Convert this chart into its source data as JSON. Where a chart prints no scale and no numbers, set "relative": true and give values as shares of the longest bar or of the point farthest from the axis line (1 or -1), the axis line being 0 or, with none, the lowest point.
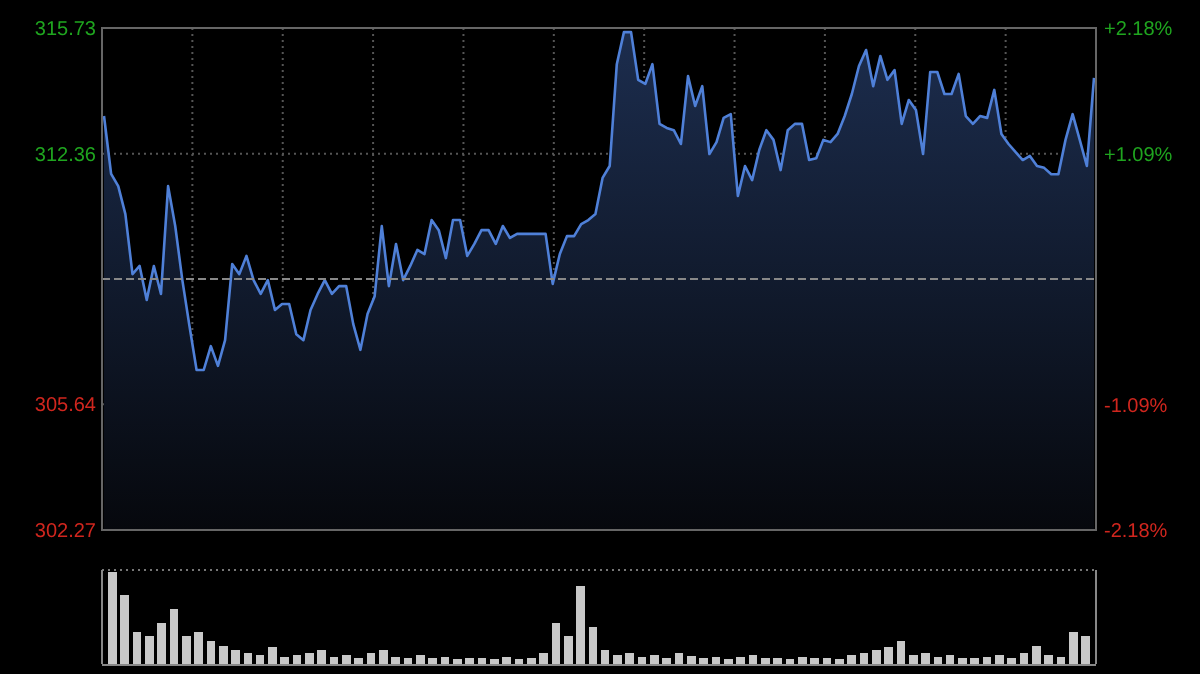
{
  "chart_data": [
    {
      "type": "area",
      "categories": [
        null,
        null,
        null,
        null,
        null,
        null,
        null,
        null,
        null,
        null,
        null,
        null,
        null,
        null,
        null,
        null,
        null,
        null,
        null,
        null,
        null,
        null,
        null,
        null,
        null,
        null,
        null,
        null,
        null,
        null,
        null,
        null,
        null,
        null,
        null,
        null,
        null,
        null,
        null,
        null,
        null,
        null,
        null,
        null,
        null,
        null,
        null,
        null,
        null,
        null,
        null,
        null,
        null,
        null,
        null,
        null,
        null,
        null,
        null,
        null,
        null,
        null,
        null,
        null,
        null,
        null,
        null,
        null,
        null,
        null,
        null,
        null,
        null,
        null,
        null,
        null,
        null,
        null,
        null,
        null,
        null,
        null,
        null,
        null,
        null,
        null,
        null,
        null,
        null,
        null,
        null,
        null,
        null,
        null,
        null,
        null,
        null,
        null,
        null,
        null,
        null,
        null,
        null,
        null,
        null,
        null,
        null,
        null,
        null,
        null,
        null,
        null,
        null,
        null,
        null,
        null,
        null,
        null,
        null,
        null,
        null,
        null,
        null,
        null,
        null,
        null,
        null,
        null,
        null,
        null,
        null,
        null,
        null,
        null,
        null,
        null,
        null,
        null,
        null,
        null
      ],
      "series": [
        {
          "color": "#4f80d8",
          "values": [
            313.37,
            311.82,
            311.49,
            310.74,
            309.13,
            309.35,
            308.44,
            309.35,
            308.6,
            311.49,
            310.42,
            308.97,
            307.74,
            306.56,
            306.56,
            307.2,
            306.67,
            307.36,
            309.4,
            309.13,
            309.62,
            308.97,
            308.6,
            308.97,
            308.17,
            308.33,
            308.33,
            307.52,
            307.36,
            308.17,
            308.6,
            308.97,
            308.6,
            308.81,
            308.81,
            307.79,
            307.1,
            308.06,
            308.54,
            310.42,
            308.81,
            309.94,
            308.97,
            309.35,
            309.78,
            309.67,
            310.58,
            310.31,
            309.56,
            310.58,
            310.58,
            309.62,
            309.94,
            310.31,
            310.31,
            309.94,
            310.42,
            310.1,
            310.21,
            310.21,
            310.21,
            310.21,
            310.21,
            308.87,
            309.67,
            310.15,
            310.15,
            310.47,
            310.58,
            310.74,
            311.71,
            312.03,
            314.76,
            315.62,
            315.62,
            314.34,
            314.23,
            314.76,
            313.16,
            313.05,
            312.99,
            312.62,
            314.44,
            313.64,
            314.17,
            312.35,
            312.67,
            313.32,
            313.42,
            311.23,
            312.03,
            311.65,
            312.46,
            312.99,
            312.73,
            311.92,
            312.99,
            313.16,
            313.16,
            312.19,
            312.24,
            312.73,
            312.67,
            312.89,
            313.37,
            313.96,
            314.71,
            315.14,
            314.17,
            314.98,
            314.34,
            314.6,
            313.16,
            313.8,
            313.53,
            312.35,
            314.55,
            314.55,
            313.96,
            313.96,
            314.5,
            313.37,
            313.16,
            313.37,
            313.32,
            314.07,
            312.89,
            312.62,
            312.4,
            312.19,
            312.3,
            312.03,
            311.98,
            311.81,
            311.81,
            312.73,
            313.42,
            312.73,
            312.03,
            314.39
          ]
        }
      ],
      "ylim": [
        302.27,
        315.73
      ],
      "yticks": [
        302.27,
        305.64,
        312.36,
        315.73
      ],
      "y2lim": [
        -2.18,
        2.18
      ],
      "y2ticks": [
        {
          "value": -2.18,
          "label": "-2.18%"
        },
        {
          "value": -1.09,
          "label": "-1.09%"
        },
        {
          "value": 1.09,
          "label": "+1.09%"
        },
        {
          "value": 2.18,
          "label": "+2.18%"
        }
      ],
      "ref_lines": [
        {
          "axis": "y",
          "value": 309.0,
          "line_style": "dashed"
        }
      ],
      "grid": true
    },
    {
      "type": "bar",
      "relative": true,
      "grid": true,
      "color": "#c8c8c8",
      "categories": [
        null,
        null,
        null,
        null,
        null,
        null,
        null,
        null,
        null,
        null,
        null,
        null,
        null,
        null,
        null,
        null,
        null,
        null,
        null,
        null,
        null,
        null,
        null,
        null,
        null,
        null,
        null,
        null,
        null,
        null,
        null,
        null,
        null,
        null,
        null,
        null,
        null,
        null,
        null,
        null,
        null,
        null,
        null,
        null,
        null,
        null,
        null,
        null,
        null,
        null,
        null,
        null,
        null,
        null,
        null,
        null,
        null,
        null,
        null,
        null,
        null,
        null,
        null,
        null,
        null,
        null,
        null,
        null,
        null,
        null,
        null,
        null,
        null,
        null,
        null,
        null,
        null,
        null,
        null,
        null
      ],
      "values": [
        1,
        0.75,
        0.35,
        0.3,
        0.45,
        0.6,
        0.3,
        0.35,
        0.25,
        0.2,
        0.15,
        0.12,
        0.1,
        0.18,
        0.08,
        0.1,
        0.12,
        0.15,
        0.08,
        0.1,
        0.06,
        0.12,
        0.15,
        0.08,
        0.07,
        0.1,
        0.06,
        0.08,
        0.05,
        0.07,
        0.06,
        0.05,
        0.08,
        0.05,
        0.06,
        0.12,
        0.45,
        0.3,
        0.85,
        0.4,
        0.15,
        0.1,
        0.12,
        0.08,
        0.1,
        0.07,
        0.12,
        0.09,
        0.06,
        0.08,
        0.05,
        0.08,
        0.1,
        0.06,
        0.07,
        0.05,
        0.08,
        0.06,
        0.07,
        0.05,
        0.1,
        0.12,
        0.15,
        0.18,
        0.25,
        0.1,
        0.12,
        0.08,
        0.1,
        0.07,
        0.06,
        0.08,
        0.1,
        0.07,
        0.12,
        0.2,
        0.1,
        0.08,
        0.35,
        0.3
      ]
    }
  ]
}
